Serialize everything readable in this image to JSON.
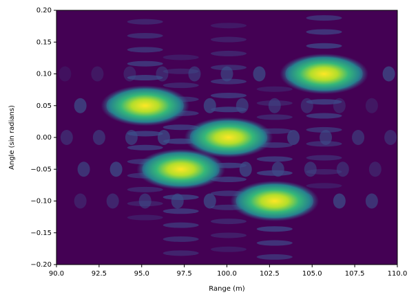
{
  "chart_data": {
    "type": "heatmap",
    "xlabel": "Range (m)",
    "ylabel": "Angle (sin radians)",
    "x": [
      95.2,
      97.3,
      100.1,
      102.8,
      105.7
    ],
    "y": [
      0.05,
      -0.05,
      0,
      -0.1,
      0.1
    ],
    "xlim": [
      90,
      110
    ],
    "ylim": [
      -0.2,
      0.2
    ],
    "xticks": [
      {
        "value": 90,
        "label": "90.0"
      },
      {
        "value": 92.5,
        "label": "92.5"
      },
      {
        "value": 95,
        "label": "95.0"
      },
      {
        "value": 97.5,
        "label": "97.5"
      },
      {
        "value": 100,
        "label": "100.0"
      },
      {
        "value": 102.5,
        "label": "102.5"
      },
      {
        "value": 105,
        "label": "105.0"
      },
      {
        "value": 107.5,
        "label": "107.5"
      },
      {
        "value": 110,
        "label": "110.0"
      }
    ],
    "yticks": [
      {
        "value": -0.2,
        "label": "−0.20"
      },
      {
        "value": -0.15,
        "label": "−0.15"
      },
      {
        "value": -0.1,
        "label": "−0.10"
      },
      {
        "value": -0.05,
        "label": "−0.05"
      },
      {
        "value": 0,
        "label": "0.00"
      },
      {
        "value": 0.05,
        "label": "0.05"
      },
      {
        "value": 0.1,
        "label": "0.10"
      },
      {
        "value": 0.15,
        "label": "0.15"
      },
      {
        "value": 0.2,
        "label": "0.20"
      }
    ]
  }
}
